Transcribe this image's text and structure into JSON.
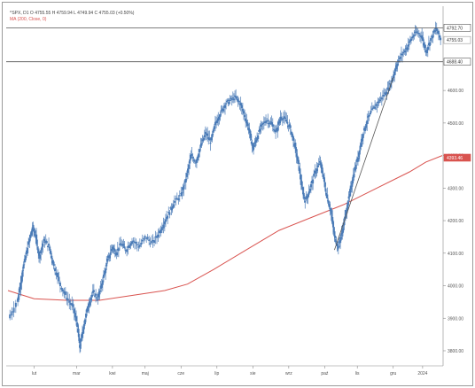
{
  "chart_data": {
    "type": "candlestick",
    "header": {
      "symbol_line": "^SPX, D1  O 4755.55  H 4759.94  L 4749.94  C 4755.03  (+0.50%)",
      "indicator_line": "MA (200, Close, 0)"
    },
    "y_axis": {
      "ticks": [
        3800,
        3900,
        4000,
        4100,
        4200,
        4300,
        4400,
        4500,
        4600
      ],
      "tick_labels": [
        "3800.00",
        "3900.00",
        "4000.00",
        "4100.00",
        "4200.00",
        "4300.00",
        "4400.00",
        "4500.00",
        "4600.00"
      ],
      "range": [
        3770,
        4810
      ]
    },
    "x_axis": {
      "labels": [
        "lut",
        "mar",
        "kwi",
        "maj",
        "cze",
        "lip",
        "sie",
        "wrz",
        "paź",
        "lis",
        "gru",
        "2024"
      ],
      "positions": [
        0.5,
        1.8,
        2.9,
        3.9,
        5.0,
        6.1,
        7.2,
        8.3,
        9.4,
        10.4,
        11.5,
        12.4
      ],
      "range": [
        -0.3,
        13.0
      ]
    },
    "price_series": {
      "color": "#4a7bb7",
      "points": [
        [
          -0.3,
          3900
        ],
        [
          0.0,
          3960
        ],
        [
          0.15,
          4050
        ],
        [
          0.3,
          4120
        ],
        [
          0.45,
          4180
        ],
        [
          0.55,
          4150
        ],
        [
          0.65,
          4090
        ],
        [
          0.8,
          4140
        ],
        [
          0.95,
          4120
        ],
        [
          1.1,
          4060
        ],
        [
          1.3,
          4000
        ],
        [
          1.5,
          3960
        ],
        [
          1.7,
          3930
        ],
        [
          1.85,
          3860
        ],
        [
          1.9,
          3810
        ],
        [
          2.0,
          3870
        ],
        [
          2.15,
          3940
        ],
        [
          2.3,
          3980
        ],
        [
          2.45,
          3960
        ],
        [
          2.6,
          4020
        ],
        [
          2.75,
          4080
        ],
        [
          2.9,
          4120
        ],
        [
          3.0,
          4100
        ],
        [
          3.15,
          4130
        ],
        [
          3.3,
          4110
        ],
        [
          3.5,
          4140
        ],
        [
          3.7,
          4120
        ],
        [
          3.9,
          4150
        ],
        [
          4.1,
          4130
        ],
        [
          4.3,
          4160
        ],
        [
          4.5,
          4200
        ],
        [
          4.65,
          4230
        ],
        [
          4.8,
          4260
        ],
        [
          5.0,
          4280
        ],
        [
          5.15,
          4330
        ],
        [
          5.3,
          4400
        ],
        [
          5.45,
          4380
        ],
        [
          5.6,
          4430
        ],
        [
          5.75,
          4470
        ],
        [
          5.9,
          4440
        ],
        [
          6.05,
          4500
        ],
        [
          6.2,
          4530
        ],
        [
          6.35,
          4560
        ],
        [
          6.5,
          4570
        ],
        [
          6.65,
          4580
        ],
        [
          6.8,
          4560
        ],
        [
          6.95,
          4520
        ],
        [
          7.1,
          4470
        ],
        [
          7.2,
          4420
        ],
        [
          7.3,
          4450
        ],
        [
          7.45,
          4490
        ],
        [
          7.6,
          4510
        ],
        [
          7.75,
          4500
        ],
        [
          7.9,
          4470
        ],
        [
          8.05,
          4520
        ],
        [
          8.2,
          4510
        ],
        [
          8.35,
          4480
        ],
        [
          8.5,
          4420
        ],
        [
          8.6,
          4370
        ],
        [
          8.7,
          4300
        ],
        [
          8.8,
          4260
        ],
        [
          8.95,
          4300
        ],
        [
          9.1,
          4350
        ],
        [
          9.25,
          4380
        ],
        [
          9.35,
          4340
        ],
        [
          9.45,
          4280
        ],
        [
          9.6,
          4220
        ],
        [
          9.7,
          4150
        ],
        [
          9.8,
          4120
        ],
        [
          9.9,
          4150
        ],
        [
          10.0,
          4200
        ],
        [
          10.1,
          4250
        ],
        [
          10.2,
          4300
        ],
        [
          10.3,
          4350
        ],
        [
          10.45,
          4410
        ],
        [
          10.55,
          4460
        ],
        [
          10.7,
          4510
        ],
        [
          10.85,
          4540
        ],
        [
          11.0,
          4560
        ],
        [
          11.15,
          4580
        ],
        [
          11.3,
          4600
        ],
        [
          11.45,
          4630
        ],
        [
          11.6,
          4680
        ],
        [
          11.75,
          4710
        ],
        [
          11.9,
          4730
        ],
        [
          12.05,
          4760
        ],
        [
          12.2,
          4780
        ],
        [
          12.35,
          4770
        ],
        [
          12.5,
          4720
        ],
        [
          12.65,
          4760
        ],
        [
          12.8,
          4790
        ],
        [
          12.95,
          4755
        ]
      ]
    },
    "ma_series": {
      "name": "MA (200, Close, 0)",
      "color": "#d9534f",
      "points": [
        [
          -0.3,
          3985
        ],
        [
          0.5,
          3960
        ],
        [
          1.5,
          3955
        ],
        [
          2.5,
          3955
        ],
        [
          3.5,
          3970
        ],
        [
          4.5,
          3985
        ],
        [
          5.2,
          4005
        ],
        [
          6.0,
          4050
        ],
        [
          7.0,
          4110
        ],
        [
          8.0,
          4170
        ],
        [
          9.0,
          4210
        ],
        [
          10.0,
          4250
        ],
        [
          11.0,
          4300
        ],
        [
          12.0,
          4350
        ],
        [
          12.5,
          4380
        ],
        [
          13.0,
          4400
        ]
      ]
    },
    "trendline": {
      "color": "#555555",
      "from": [
        9.7,
        4110
      ],
      "to": [
        11.5,
        4640
      ]
    },
    "horizontal_lines": [
      {
        "value": 4792.7,
        "color": "#555555"
      },
      {
        "value": 4688.4,
        "color": "#555555"
      }
    ],
    "price_tags": [
      {
        "label": "4792.70",
        "value": 4792.7,
        "bg": "#ffffff",
        "fg": "#333333",
        "border": "#555555"
      },
      {
        "label": "4755.03",
        "value": 4755.03,
        "bg": "#ffffff",
        "fg": "#333333",
        "border": "#999999"
      },
      {
        "label": "4688.40",
        "value": 4688.4,
        "bg": "#ffffff",
        "fg": "#333333",
        "border": "#555555"
      },
      {
        "label": "4393.46",
        "value": 4393.46,
        "bg": "#d9534f",
        "fg": "#ffffff",
        "border": "#d9534f"
      }
    ]
  }
}
